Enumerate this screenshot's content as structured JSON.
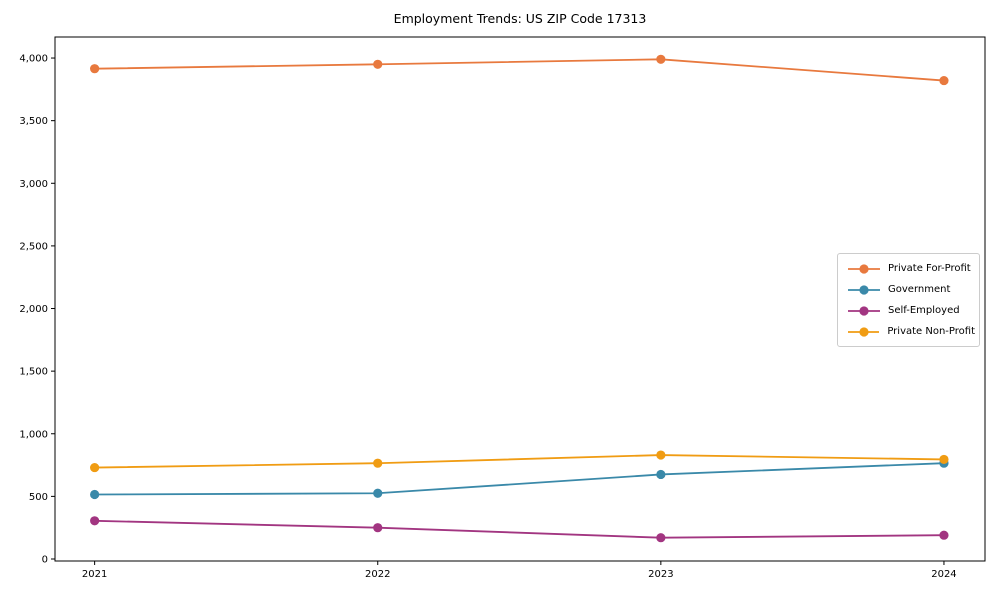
{
  "chart_data": {
    "type": "line",
    "title": "Employment Trends: US ZIP Code 17313",
    "xlabel": "",
    "ylabel": "",
    "x": [
      2021,
      2022,
      2023,
      2024
    ],
    "x_tick_labels": [
      "2021",
      "2022",
      "2023",
      "2024"
    ],
    "y_ticks": [
      0,
      500,
      1000,
      1500,
      2000,
      2500,
      3000,
      3500,
      4000
    ],
    "y_tick_labels": [
      "0",
      "500",
      "1,000",
      "1,500",
      "2,000",
      "2,500",
      "3,000",
      "3,500",
      "4,000"
    ],
    "xlim": [
      2020.86,
      2024.145
    ],
    "ylim": [
      -16,
      4168
    ],
    "grid": false,
    "legend_position": "center right",
    "series": [
      {
        "name": "Private For-Profit",
        "color": "#e8793e",
        "values": [
          3915,
          3950,
          3990,
          3820
        ]
      },
      {
        "name": "Government",
        "color": "#3a89a9",
        "values": [
          515,
          525,
          675,
          765
        ]
      },
      {
        "name": "Self-Employed",
        "color": "#a23581",
        "values": [
          305,
          250,
          170,
          190
        ]
      },
      {
        "name": "Private Non-Profit",
        "color": "#f09c13",
        "values": [
          730,
          765,
          830,
          795
        ]
      }
    ],
    "axis_color": "#000000",
    "background_color": "#ffffff"
  }
}
